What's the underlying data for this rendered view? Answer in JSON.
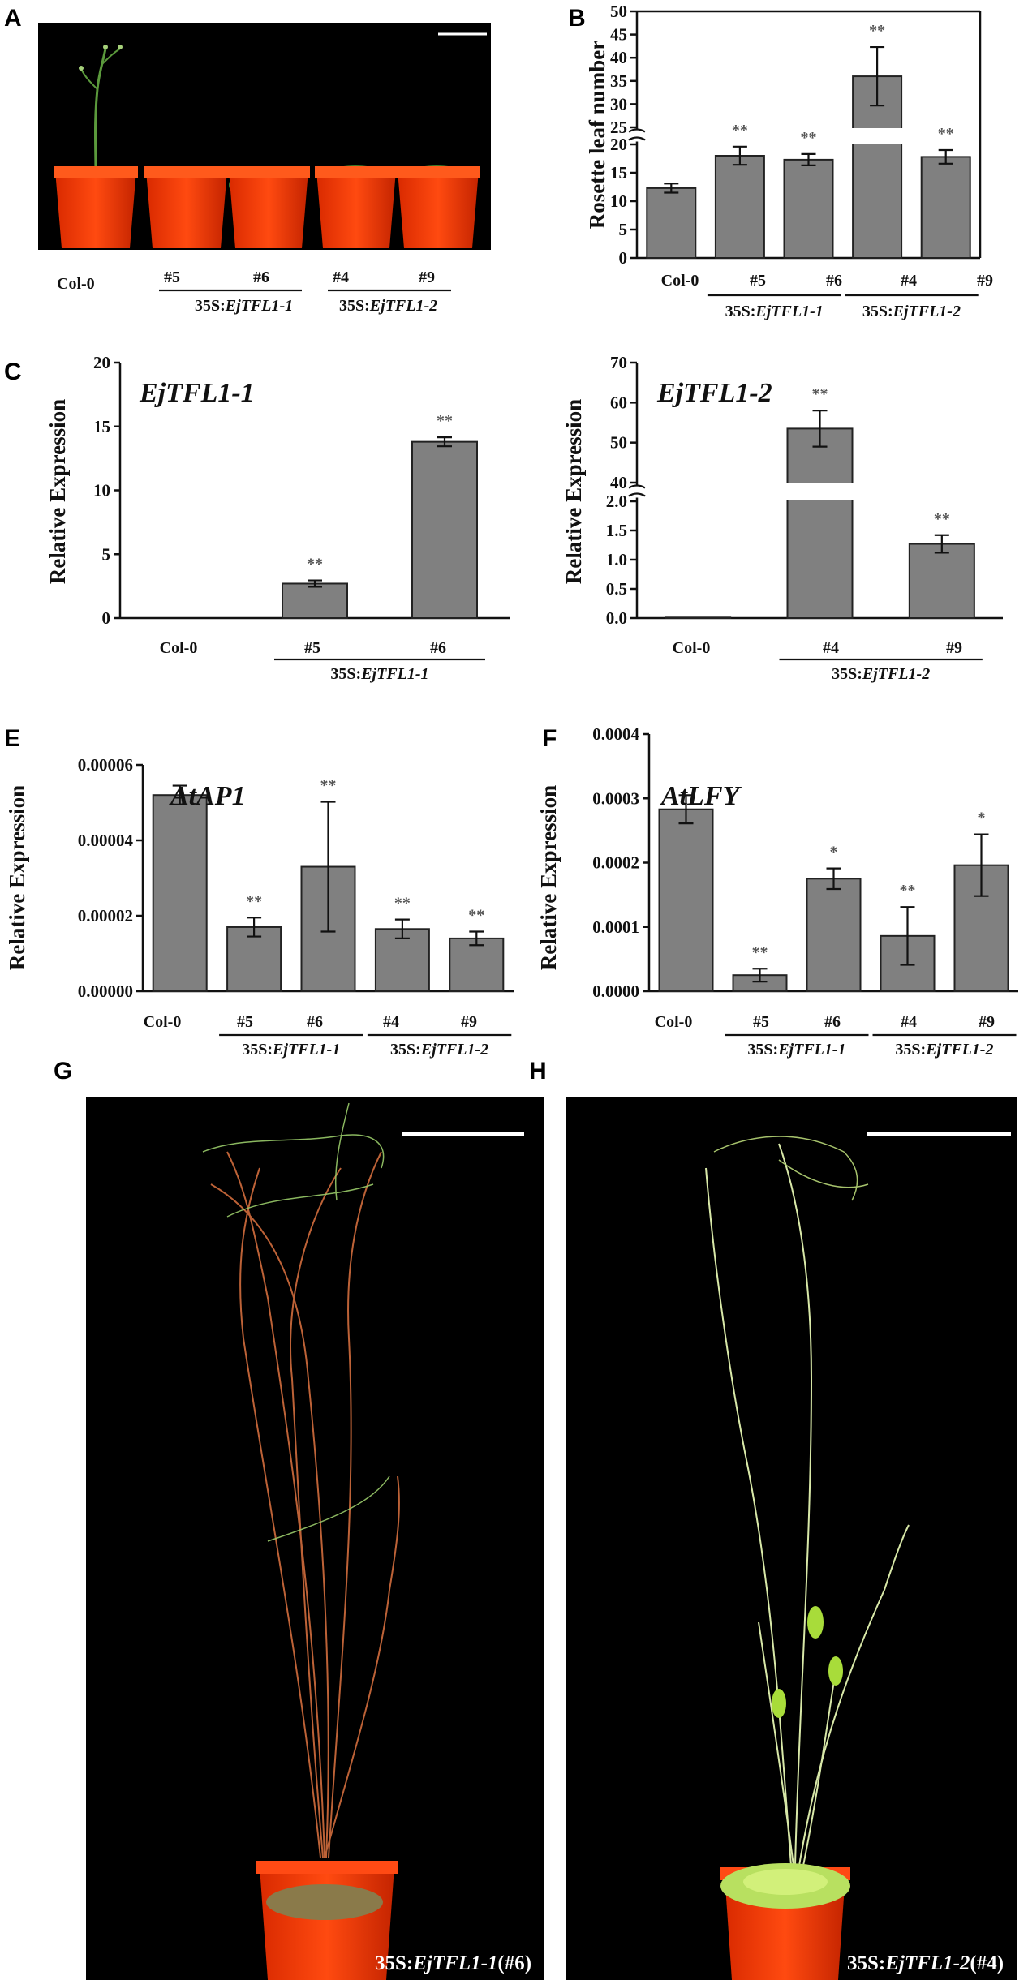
{
  "panel_labels": {
    "A": "A",
    "B": "B",
    "C": "C",
    "E": "E",
    "F": "F",
    "G": "G",
    "H": "H"
  },
  "panelA": {
    "categories": [
      "Col-0",
      "#5",
      "#6",
      "#4",
      "#9"
    ],
    "groups": [
      {
        "prefix": "35S:",
        "gene": "EjTFL1-1"
      },
      {
        "prefix": "35S:",
        "gene": "EjTFL1-2"
      }
    ]
  },
  "photoG": {
    "caption_prefix": "35S:",
    "caption_gene": "EjTFL1-1",
    "caption_suffix": "(#6)"
  },
  "photoH": {
    "caption_prefix": "35S:",
    "caption_gene": "EjTFL1-2",
    "caption_suffix": "(#4)"
  },
  "chart_data": [
    {
      "id": "B",
      "type": "bar",
      "title": "",
      "ylabel": "Rosette leaf number",
      "categories": [
        "Col-0",
        "#5",
        "#6",
        "#4",
        "#9"
      ],
      "values": [
        12.3,
        18.0,
        17.3,
        36.0,
        17.8
      ],
      "errors": [
        0.8,
        1.6,
        1.0,
        6.3,
        1.2
      ],
      "significance": [
        "",
        "**",
        "**",
        "**",
        "**"
      ],
      "broken_axis": true,
      "lower_range": [
        0,
        20
      ],
      "upper_range": [
        25,
        50
      ],
      "lower_ticks": [
        0,
        5,
        10,
        15,
        20
      ],
      "upper_ticks": [
        25,
        30,
        35,
        40,
        45,
        50
      ],
      "groups": [
        {
          "prefix": "35S:",
          "gene": "EjTFL1-1",
          "from": 1,
          "to": 2
        },
        {
          "prefix": "35S:",
          "gene": "EjTFL1-2",
          "from": 3,
          "to": 4
        }
      ]
    },
    {
      "id": "C1",
      "type": "bar",
      "title": "EjTFL1-1",
      "ylabel": "Relative Expression",
      "categories": [
        "Col-0",
        "#5",
        "#6"
      ],
      "values": [
        0,
        2.7,
        13.8
      ],
      "errors": [
        0,
        0.25,
        0.35
      ],
      "significance": [
        "",
        "**",
        "**"
      ],
      "ylim": [
        0,
        20
      ],
      "ticks": [
        0,
        5,
        10,
        15,
        20
      ],
      "groups": [
        {
          "prefix": "35S:",
          "gene": "EjTFL1-1",
          "from": 1,
          "to": 2
        }
      ]
    },
    {
      "id": "C2",
      "type": "bar",
      "title": "EjTFL1-2",
      "ylabel": "Relative Expression",
      "categories": [
        "Col-0",
        "#4",
        "#9"
      ],
      "values": [
        0.01,
        53.5,
        1.27
      ],
      "errors": [
        0,
        4.5,
        0.15
      ],
      "significance": [
        "",
        "**",
        "**"
      ],
      "broken_axis": true,
      "lower_range": [
        0,
        2.0
      ],
      "upper_range": [
        40,
        70
      ],
      "lower_ticks": [
        "0.0",
        "0.5",
        "1.0",
        "1.5",
        "2.0"
      ],
      "upper_ticks": [
        40,
        50,
        60,
        70
      ],
      "groups": [
        {
          "prefix": "35S:",
          "gene": "EjTFL1-2",
          "from": 1,
          "to": 2
        }
      ]
    },
    {
      "id": "E",
      "type": "bar",
      "title": "AtAP1",
      "ylabel": "Relative Expression",
      "categories": [
        "Col-0",
        "#5",
        "#6",
        "#4",
        "#9"
      ],
      "values": [
        5.2e-05,
        1.7e-05,
        3.3e-05,
        1.65e-05,
        1.4e-05
      ],
      "errors": [
        2.5e-06,
        2.5e-06,
        1.72e-05,
        2.5e-06,
        1.8e-06
      ],
      "significance": [
        "",
        "**",
        "**",
        "**",
        "**"
      ],
      "ylim": [
        0,
        6e-05
      ],
      "ticks": [
        "0.00000",
        "0.00002",
        "0.00004",
        "0.00006"
      ],
      "groups": [
        {
          "prefix": "35S:",
          "gene": "EjTFL1-1",
          "from": 1,
          "to": 2
        },
        {
          "prefix": "35S:",
          "gene": "EjTFL1-2",
          "from": 3,
          "to": 4
        }
      ]
    },
    {
      "id": "F",
      "type": "bar",
      "title": "AtLFY",
      "ylabel": "Relative Expression",
      "categories": [
        "Col-0",
        "#5",
        "#6",
        "#4",
        "#9"
      ],
      "values": [
        0.000283,
        2.5e-05,
        0.000175,
        8.6e-05,
        0.000196
      ],
      "errors": [
        2.2e-05,
        1e-05,
        1.6e-05,
        4.5e-05,
        4.8e-05
      ],
      "significance": [
        "",
        "**",
        "*",
        "**",
        "*"
      ],
      "ylim": [
        0,
        0.0004
      ],
      "ticks": [
        "0.0000",
        "0.0001",
        "0.0002",
        "0.0003",
        "0.0004"
      ],
      "groups": [
        {
          "prefix": "35S:",
          "gene": "EjTFL1-1",
          "from": 1,
          "to": 2
        },
        {
          "prefix": "35S:",
          "gene": "EjTFL1-2",
          "from": 3,
          "to": 4
        }
      ]
    }
  ]
}
